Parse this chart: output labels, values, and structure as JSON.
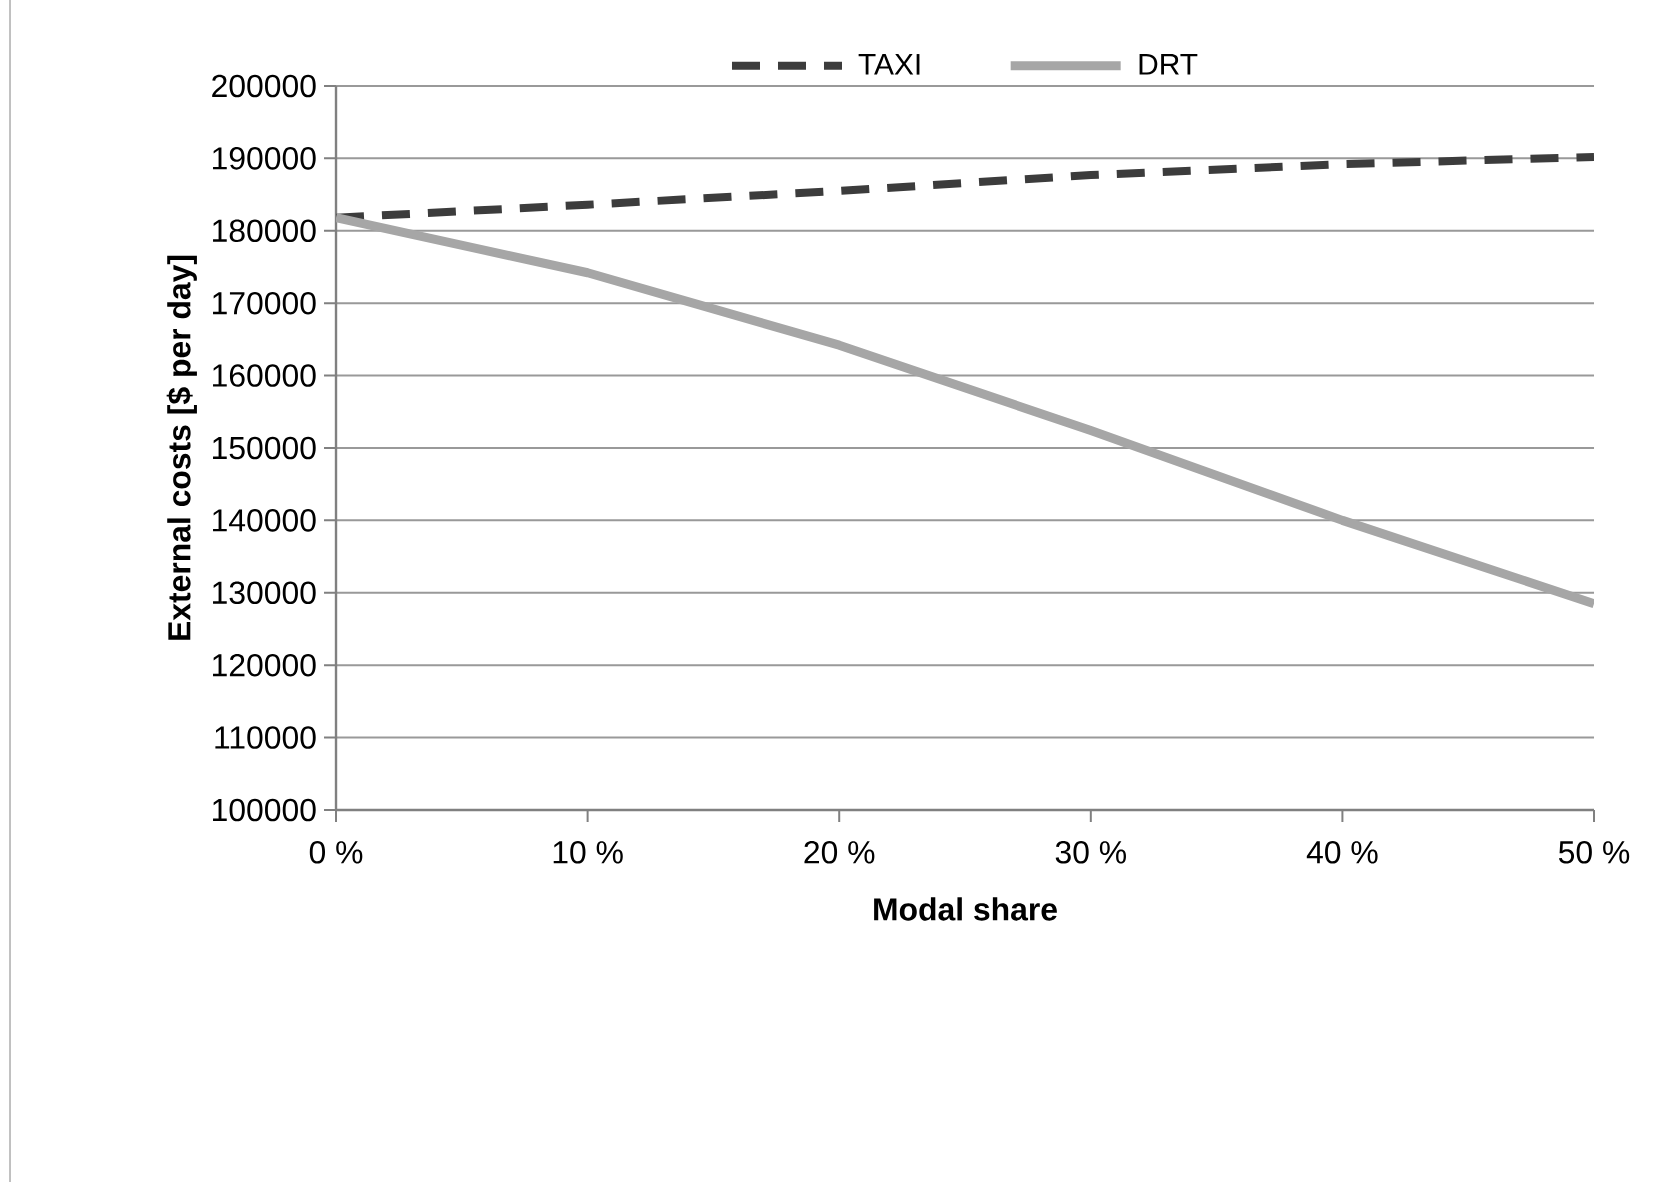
{
  "chart_data": {
    "type": "line",
    "xlabel": "Modal share",
    "ylabel": "External costs [$ per day]",
    "x": [
      0,
      10,
      20,
      30,
      40,
      50
    ],
    "series": [
      {
        "name": "TAXI",
        "color": "#3c3c3c",
        "line_style": "dashed",
        "values": [
          181800,
          183600,
          185500,
          187700,
          189200,
          190200
        ]
      },
      {
        "name": "DRT",
        "color": "#a6a6a6",
        "line_style": "solid",
        "values": [
          181800,
          174200,
          164200,
          152400,
          140000,
          128500
        ]
      }
    ],
    "xlim": [
      0,
      50
    ],
    "xticks": [
      {
        "value": 0,
        "label": "0 %"
      },
      {
        "value": 10,
        "label": "10 %"
      },
      {
        "value": 20,
        "label": "20 %"
      },
      {
        "value": 30,
        "label": "30 %"
      },
      {
        "value": 40,
        "label": "40 %"
      },
      {
        "value": 50,
        "label": "50 %"
      }
    ],
    "ylim": [
      100000,
      200000
    ],
    "yticks": [
      100000,
      110000,
      120000,
      130000,
      140000,
      150000,
      160000,
      170000,
      180000,
      190000,
      200000
    ],
    "grid": "y",
    "legend": "top",
    "marker": "none"
  }
}
